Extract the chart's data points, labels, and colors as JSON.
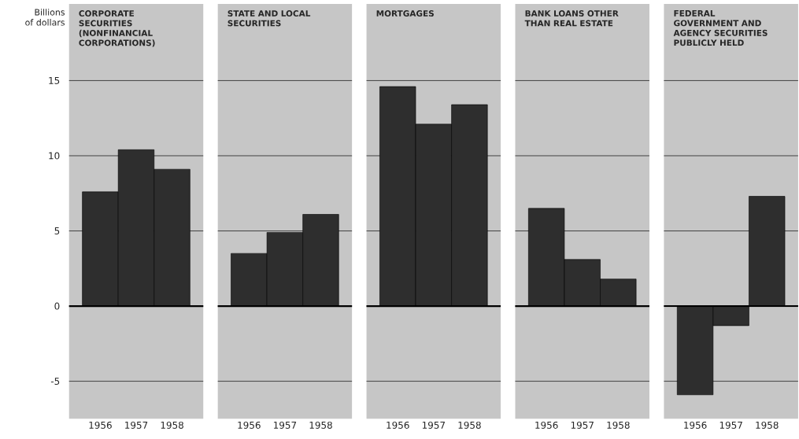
{
  "chart_data": [
    {
      "type": "bar",
      "title": "CORPORATE SECURITIES (NONFINANCIAL CORPORATIONS)",
      "ylabel": "Billions of dollars",
      "categories": [
        "1956",
        "1957",
        "1958"
      ],
      "values": [
        7.6,
        10.4,
        9.1
      ],
      "color": "#2e2e2e",
      "ylim": [
        -7.5,
        20.1
      ],
      "yticks": [
        -5,
        0,
        5,
        10,
        15
      ],
      "grid": "y"
    },
    {
      "type": "bar",
      "title": "STATE AND LOCAL SECURITIES",
      "categories": [
        "1956",
        "1957",
        "1958"
      ],
      "values": [
        3.5,
        4.9,
        6.1
      ],
      "color": "#2e2e2e",
      "ylim": [
        -7.5,
        20.1
      ],
      "yticks": [
        -5,
        0,
        5,
        10,
        15
      ],
      "grid": "y",
      "tick_labels": "x"
    },
    {
      "type": "bar",
      "title": "MORTGAGES",
      "categories": [
        "1956",
        "1957",
        "1958"
      ],
      "values": [
        14.6,
        12.1,
        13.4
      ],
      "color": "#2e2e2e",
      "ylim": [
        -7.5,
        20.1
      ],
      "yticks": [
        -5,
        0,
        5,
        10,
        15
      ],
      "grid": "y",
      "tick_labels": "x"
    },
    {
      "type": "bar",
      "title": "BANK LOANS OTHER THAN REAL ESTATE",
      "categories": [
        "1956",
        "1957",
        "1958"
      ],
      "values": [
        6.5,
        3.1,
        1.8
      ],
      "color": "#2e2e2e",
      "ylim": [
        -7.5,
        20.1
      ],
      "yticks": [
        -5,
        0,
        5,
        10,
        15
      ],
      "grid": "y",
      "tick_labels": "x"
    },
    {
      "type": "bar",
      "title": "FEDERAL GOVERNMENT AND AGENCY SECURITIES PUBLICLY HELD",
      "categories": [
        "1956",
        "1957",
        "1958"
      ],
      "values": [
        -5.9,
        -1.3,
        7.3
      ],
      "color": "#2e2e2e",
      "ylim": [
        -7.5,
        20.1
      ],
      "yticks": [
        -5,
        0,
        5,
        10,
        15
      ],
      "grid": "y",
      "tick_labels": "x"
    }
  ]
}
